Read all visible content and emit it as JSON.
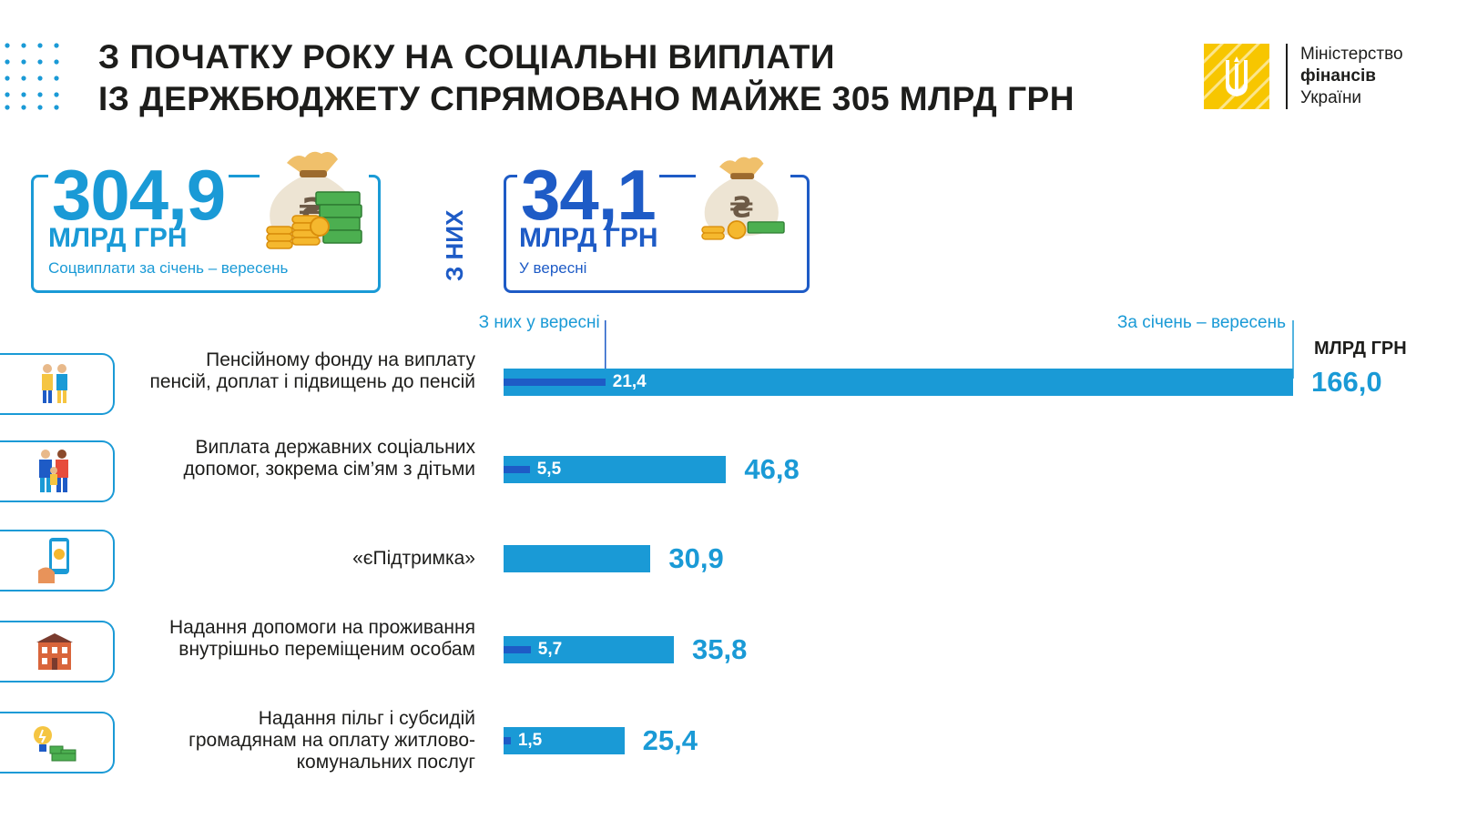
{
  "header": {
    "title_line1": "З ПОЧАТКУ РОКУ НА СОЦІАЛЬНІ ВИПЛАТИ",
    "title_line2": "ІЗ ДЕРЖБЮДЖЕТУ СПРЯМОВАНО МАЙЖЕ 305 МЛРД ГРН"
  },
  "ministry": {
    "line1": "Міністерство",
    "line2": "фінансів",
    "line3": "України",
    "emblem_color": "#f7c600"
  },
  "summary": {
    "total": {
      "value": "304,9",
      "unit": "МЛРД ГРН",
      "caption": "Соцвиплати за січень – вересень"
    },
    "of_them_label": "З НИХ",
    "september": {
      "value": "34,1",
      "unit": "МЛРД ГРН",
      "caption": "У вересні"
    }
  },
  "colors": {
    "accent": "#1a9ad6",
    "dark_blue": "#1e5bc6",
    "text": "#1d1d1b",
    "gold": "#f7c600"
  },
  "chart_data": {
    "type": "bar",
    "orientation": "horizontal",
    "unit": "МЛРД ГРН",
    "legend": {
      "monthly": "З них у вересні",
      "total": "За січень –  вересень"
    },
    "categories": [
      "Пенсійному фонду на виплату пенсій, доплат і підвищень до пенсій",
      "Виплата державних соціальних допомог, зокрема сім’ям з дітьми",
      "«єПідтримка»",
      "Надання допомоги на проживання внутрішньо переміщеним особам",
      "Надання пільг і субсидій громадянам на оплату житлово-комунальних послуг"
    ],
    "icons": [
      "elderly-couple-icon",
      "family-icon",
      "smartphone-payment-icon",
      "house-icon",
      "lightbulb-money-icon"
    ],
    "series": [
      {
        "name": "За січень –  вересень",
        "values": [
          166.0,
          46.8,
          30.9,
          35.8,
          25.4
        ],
        "labels": [
          "166,0",
          "46,8",
          "30,9",
          "35,8",
          "25,4"
        ]
      },
      {
        "name": "З них у вересні",
        "values": [
          21.4,
          5.5,
          null,
          5.7,
          1.5
        ],
        "labels": [
          "21,4",
          "5,5",
          "",
          "5,7",
          "1,5"
        ]
      }
    ],
    "xlim": [
      0,
      166.0
    ]
  }
}
